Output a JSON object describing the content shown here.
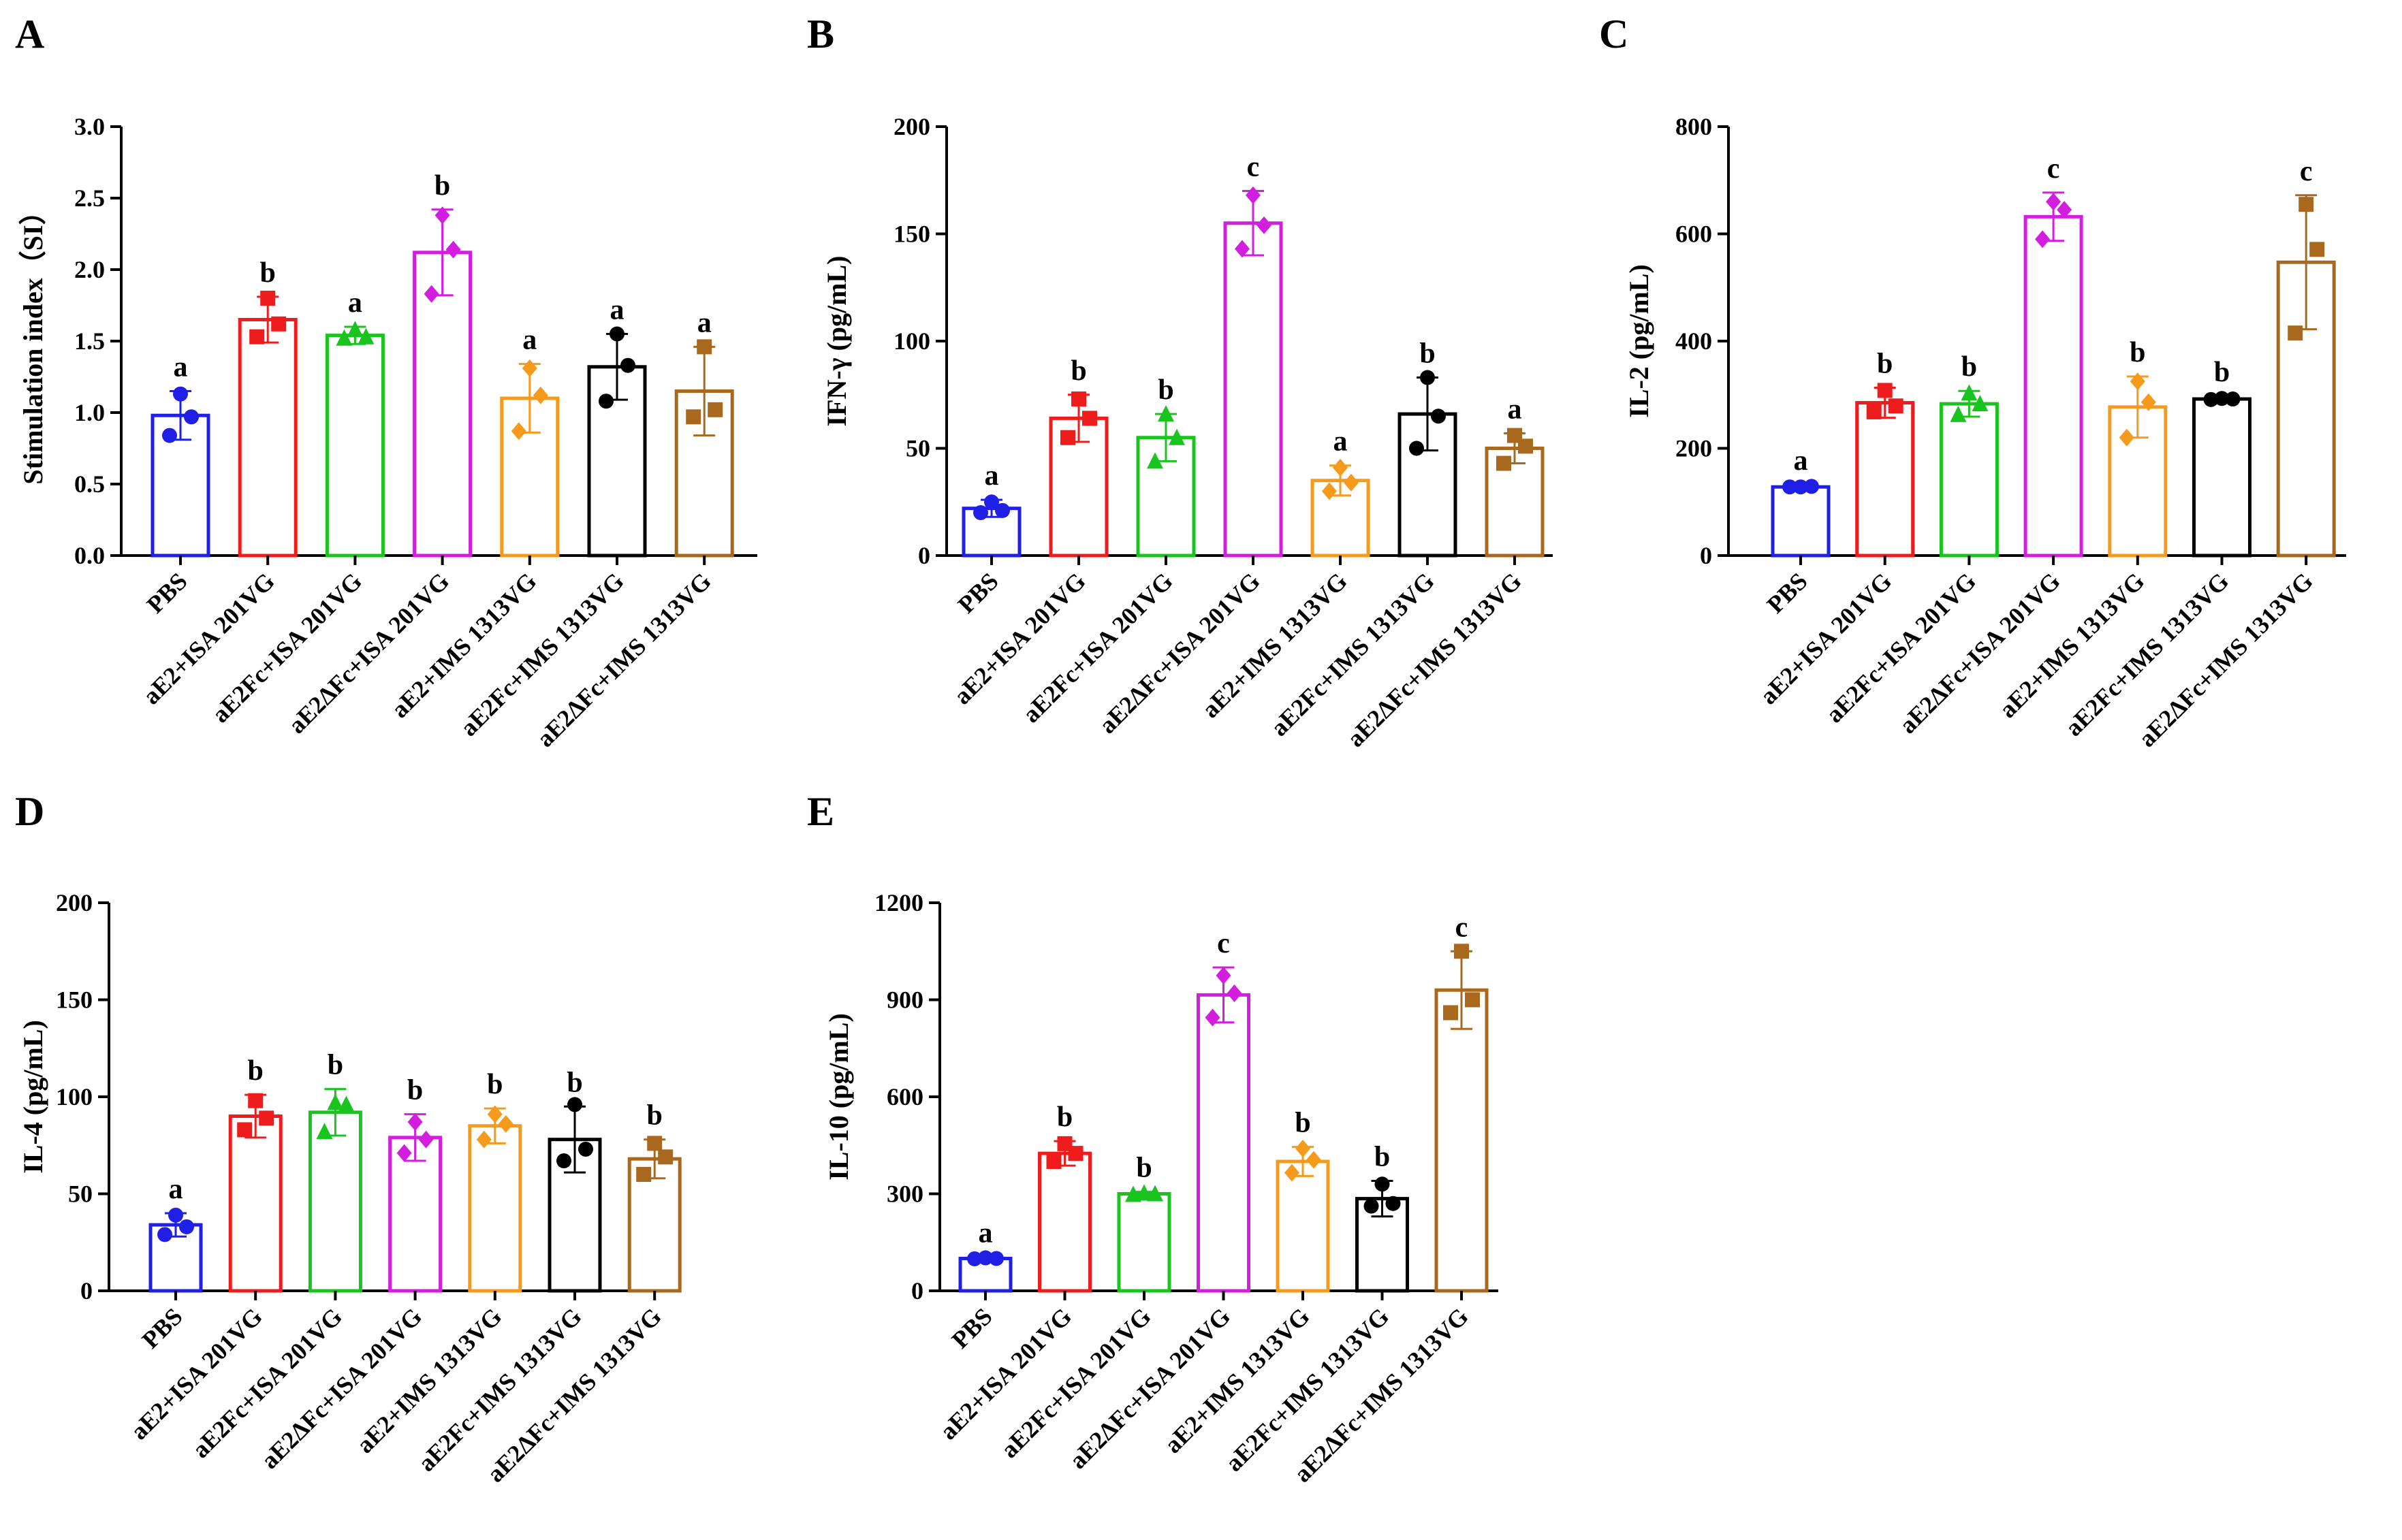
{
  "chart_data": [
    {
      "panel": "A",
      "type": "bar",
      "ylabel": "Stimulation index（SI）",
      "ylim": [
        0,
        3.0
      ],
      "yticks": [
        0.0,
        0.5,
        1.0,
        1.5,
        2.0,
        2.5,
        3.0
      ],
      "ytick_labels": [
        "0.0",
        "0.5",
        "1.0",
        "1.5",
        "2.0",
        "2.5",
        "3.0"
      ],
      "categories": [
        "PBS",
        "aE2+ISA 201VG",
        "aE2Fc+ISA 201VG",
        "aE2ΔFc+ISA 201VG",
        "aE2+IMS 1313VG",
        "aE2Fc+IMS 1313VG",
        "aE2ΔFc+IMS 1313VG"
      ],
      "values": [
        0.98,
        1.65,
        1.54,
        2.12,
        1.1,
        1.32,
        1.15
      ],
      "errors": [
        0.17,
        0.16,
        0.06,
        0.3,
        0.24,
        0.23,
        0.31
      ],
      "points": [
        [
          1.13,
          0.84,
          0.97
        ],
        [
          1.8,
          1.53,
          1.62
        ],
        [
          1.58,
          1.52,
          1.53
        ],
        [
          2.38,
          1.83,
          2.14
        ],
        [
          1.31,
          0.87,
          1.12
        ],
        [
          1.55,
          1.08,
          1.33
        ],
        [
          1.46,
          0.97,
          1.02
        ]
      ],
      "letters": [
        "a",
        "b",
        "a",
        "b",
        "a",
        "a",
        "a"
      ]
    },
    {
      "panel": "B",
      "type": "bar",
      "ylabel": "IFN-γ (pg/mL)",
      "ylim": [
        0,
        200
      ],
      "yticks": [
        0,
        50,
        100,
        150,
        200
      ],
      "ytick_labels": [
        "0",
        "50",
        "100",
        "150",
        "200"
      ],
      "categories": [
        "PBS",
        "aE2+ISA 201VG",
        "aE2Fc+ISA 201VG",
        "aE2ΔFc+ISA 201VG",
        "aE2+IMS 1313VG",
        "aE2Fc+IMS 1313VG",
        "aE2ΔFc+IMS 1313VG"
      ],
      "values": [
        22,
        64,
        55,
        155,
        35,
        66,
        50
      ],
      "errors": [
        4,
        11,
        11,
        15,
        7,
        17,
        7
      ],
      "points": [
        [
          25,
          20,
          21
        ],
        [
          73,
          55,
          64
        ],
        [
          66,
          44,
          55
        ],
        [
          168,
          143,
          154
        ],
        [
          41,
          30,
          34
        ],
        [
          83,
          50,
          65
        ],
        [
          56,
          43,
          51
        ]
      ],
      "letters": [
        "a",
        "b",
        "b",
        "c",
        "a",
        "b",
        "a"
      ]
    },
    {
      "panel": "C",
      "type": "bar",
      "ylabel": "IL-2 (pg/mL)",
      "ylim": [
        0,
        800
      ],
      "yticks": [
        0,
        200,
        400,
        600,
        800
      ],
      "ytick_labels": [
        "0",
        "200",
        "400",
        "600",
        "800"
      ],
      "categories": [
        "PBS",
        "aE2+ISA 201VG",
        "aE2Fc+ISA 201VG",
        "aE2ΔFc+ISA 201VG",
        "aE2+IMS 1313VG",
        "aE2Fc+IMS 1313VG",
        "aE2ΔFc+IMS 1313VG"
      ],
      "values": [
        128,
        285,
        283,
        632,
        277,
        292,
        547
      ],
      "errors": [
        4,
        28,
        24,
        45,
        57,
        5,
        125
      ],
      "points": [
        [
          128,
          128,
          129
        ],
        [
          308,
          268,
          279
        ],
        [
          303,
          263,
          283
        ],
        [
          660,
          590,
          645
        ],
        [
          325,
          220,
          286
        ],
        [
          293,
          291,
          292
        ],
        [
          655,
          415,
          571
        ]
      ],
      "letters": [
        "a",
        "b",
        "b",
        "c",
        "b",
        "b",
        "c"
      ]
    },
    {
      "panel": "D",
      "type": "bar",
      "ylabel": "IL-4 (pg/mL)",
      "ylim": [
        0,
        200
      ],
      "yticks": [
        0,
        50,
        100,
        150,
        200
      ],
      "ytick_labels": [
        "0",
        "50",
        "100",
        "150",
        "200"
      ],
      "categories": [
        "PBS",
        "aE2+ISA 201VG",
        "aE2Fc+ISA 201VG",
        "aE2ΔFc+ISA 201VG",
        "aE2+IMS 1313VG",
        "aE2Fc+IMS 1313VG",
        "aE2ΔFc+IMS 1313VG"
      ],
      "values": [
        34,
        90,
        92,
        79,
        85,
        78,
        68
      ],
      "errors": [
        6,
        11,
        12,
        12,
        9,
        17,
        10
      ],
      "points": [
        [
          39,
          29,
          33
        ],
        [
          98,
          83,
          89
        ],
        [
          97,
          82,
          96
        ],
        [
          87,
          71,
          78
        ],
        [
          91,
          78,
          86
        ],
        [
          96,
          67,
          73
        ],
        [
          76,
          60,
          69
        ]
      ],
      "letters": [
        "a",
        "b",
        "b",
        "b",
        "b",
        "b",
        "b"
      ]
    },
    {
      "panel": "E",
      "type": "bar",
      "ylabel": "IL-10 (pg/mL)",
      "ylim": [
        0,
        1200
      ],
      "yticks": [
        0,
        300,
        600,
        900,
        1200
      ],
      "ytick_labels": [
        "0",
        "300",
        "600",
        "900",
        "1200"
      ],
      "categories": [
        "PBS",
        "aE2+ISA 201VG",
        "aE2Fc+ISA 201VG",
        "aE2ΔFc+ISA 201VG",
        "aE2+IMS 1313VG",
        "aE2Fc+IMS 1313VG",
        "aE2ΔFc+IMS 1313VG"
      ],
      "values": [
        100,
        425,
        300,
        915,
        400,
        285,
        930
      ],
      "errors": [
        4,
        38,
        6,
        85,
        45,
        55,
        120
      ],
      "points": [
        [
          102,
          99,
          100
        ],
        [
          455,
          400,
          425
        ],
        [
          302,
          298,
          300
        ],
        [
          975,
          845,
          920
        ],
        [
          440,
          365,
          405
        ],
        [
          330,
          262,
          270
        ],
        [
          1050,
          860,
          900
        ]
      ],
      "letters": [
        "a",
        "b",
        "b",
        "c",
        "b",
        "b",
        "c"
      ]
    }
  ],
  "colors": [
    "#1f1fe6",
    "#ee1c1c",
    "#19c41e",
    "#d31ee0",
    "#f59a1b",
    "#000000",
    "#a8691f"
  ],
  "markers": [
    "circle",
    "square",
    "triangle",
    "diamond",
    "diamond",
    "circle",
    "square"
  ]
}
